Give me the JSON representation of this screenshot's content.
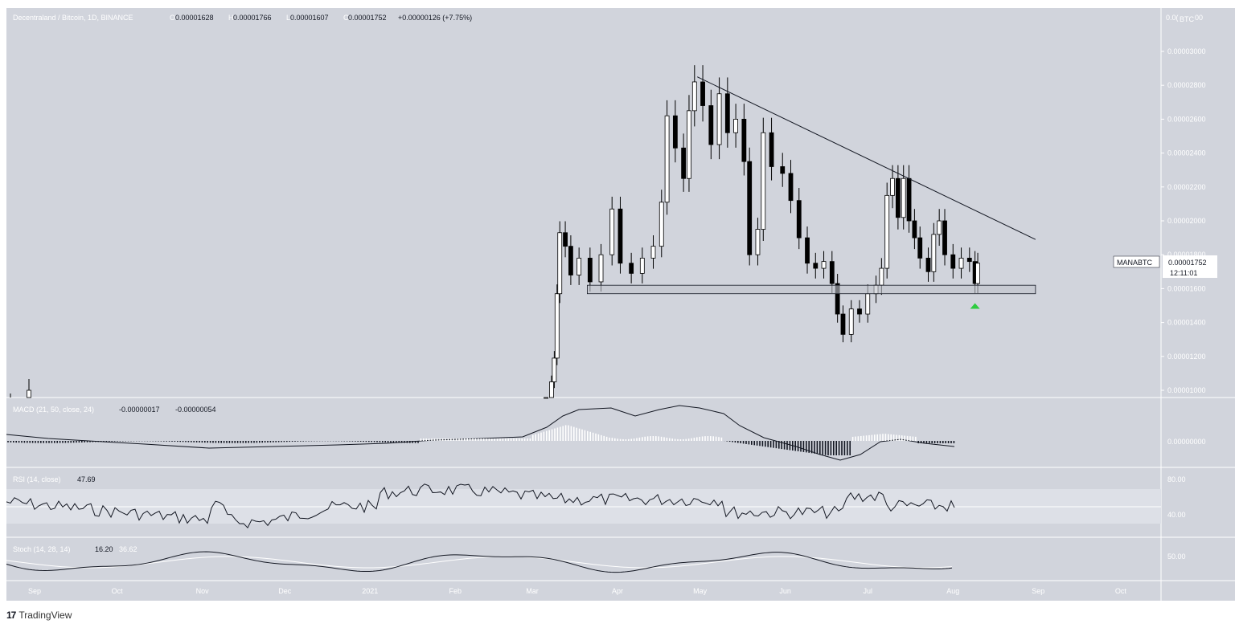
{
  "header": {
    "symbol_title": "Decentraland / Bitcoin, 1D, BINANCE",
    "open_label": "O",
    "open": "0.00001628",
    "high_label": "H",
    "high": "0.00001766",
    "low_label": "L",
    "low": "0.00001607",
    "close_label": "C",
    "close": "0.00001752",
    "change": "+0.00000126 (+7.75%)"
  },
  "price_axis": {
    "currency": "BTC",
    "top_label": "0.0(",
    "top_label_suffix": "00",
    "ticks": [
      "0.00003000",
      "0.00002800",
      "0.00002600",
      "0.00002400",
      "0.00002200",
      "0.00002000",
      "0.00001800",
      "0.00001600",
      "0.00001400",
      "0.00001200",
      "0.00001000"
    ],
    "tick_values": [
      3e-05,
      2.8e-05,
      2.6e-05,
      2.4e-05,
      2.2e-05,
      2e-05,
      1.8e-05,
      1.6e-05,
      1.4e-05,
      1.2e-05,
      1e-05
    ]
  },
  "last_price": {
    "ticker": "MANABTC",
    "price": "0.00001752",
    "countdown": "12:11:01"
  },
  "x_axis": {
    "labels": [
      "Sep",
      "Oct",
      "Nov",
      "Dec",
      "2021",
      "Feb",
      "Mar",
      "Apr",
      "May",
      "Jun",
      "Jul",
      "Aug",
      "Sep",
      "Oct"
    ]
  },
  "macd": {
    "label": "MACD (21, 50, close, 24)",
    "macd_value": "-0.00000017",
    "signal_value": "-0.00000054",
    "axis_label": "0.00000000"
  },
  "rsi": {
    "label": "RSI (14, close)",
    "value": "47.69",
    "axis_labels": [
      "80.00",
      "40.00"
    ]
  },
  "stoch": {
    "label": "Stoch (14, 28, 14)",
    "k_value": "16.20",
    "d_value": "36.62",
    "axis_label": "50.00"
  },
  "footer": {
    "brand": "TradingView",
    "logo": "17"
  },
  "colors": {
    "background": "#d1d4dc",
    "candle": "#000000",
    "support_zone": "#c0c3cb",
    "signal_arrow": "#2ecc40",
    "grid": "#c6c9d1"
  },
  "chart_data": {
    "type": "candlestick",
    "title": "Decentraland / Bitcoin, 1D, BINANCE",
    "xlabel": "",
    "ylabel": "",
    "ylim": [
      9.6e-06,
      3.21e-05
    ],
    "x_labels": [
      "Sep",
      "Oct",
      "Nov",
      "Dec",
      "2021",
      "Feb",
      "Mar",
      "Apr",
      "May",
      "Jun",
      "Jul",
      "Aug",
      "Sep",
      "Oct"
    ],
    "series": [
      {
        "points": [
          [
            "2021-03-06",
            9.1e-06
          ],
          [
            "2021-03-08",
            1.05e-05
          ],
          [
            "2021-03-09",
            1.19e-05
          ],
          [
            "2021-03-10",
            1.57e-05
          ],
          [
            "2021-03-11",
            1.93e-05
          ],
          [
            "2021-03-13",
            1.85e-05
          ],
          [
            "2021-03-15",
            1.68e-05
          ],
          [
            "2021-03-18",
            1.78e-05
          ],
          [
            "2021-03-22",
            1.64e-05
          ],
          [
            "2021-03-26",
            1.8e-05
          ],
          [
            "2021-03-30",
            2.07e-05
          ],
          [
            "2021-04-02",
            1.75e-05
          ],
          [
            "2021-04-06",
            1.69e-05
          ],
          [
            "2021-04-10",
            1.78e-05
          ],
          [
            "2021-04-14",
            1.85e-05
          ],
          [
            "2021-04-17",
            2.11e-05
          ],
          [
            "2021-04-19",
            2.62e-05
          ],
          [
            "2021-04-22",
            2.43e-05
          ],
          [
            "2021-04-25",
            2.25e-05
          ],
          [
            "2021-04-27",
            2.65e-05
          ],
          [
            "2021-04-29",
            2.82e-05
          ],
          [
            "2021-05-02",
            2.68e-05
          ],
          [
            "2021-05-05",
            2.45e-05
          ],
          [
            "2021-05-08",
            2.75e-05
          ],
          [
            "2021-05-11",
            2.52e-05
          ],
          [
            "2021-05-14",
            2.6e-05
          ],
          [
            "2021-05-17",
            2.35e-05
          ],
          [
            "2021-05-19",
            1.8e-05
          ],
          [
            "2021-05-22",
            1.95e-05
          ],
          [
            "2021-05-24",
            2.52e-05
          ],
          [
            "2021-05-27",
            2.32e-05
          ],
          [
            "2021-05-31",
            2.28e-05
          ],
          [
            "2021-06-03",
            2.12e-05
          ],
          [
            "2021-06-06",
            1.9e-05
          ],
          [
            "2021-06-09",
            1.75e-05
          ],
          [
            "2021-06-12",
            1.72e-05
          ],
          [
            "2021-06-15",
            1.76e-05
          ],
          [
            "2021-06-18",
            1.63e-05
          ],
          [
            "2021-06-20",
            1.45e-05
          ],
          [
            "2021-06-22",
            1.33e-05
          ],
          [
            "2021-06-25",
            1.48e-05
          ],
          [
            "2021-06-28",
            1.45e-05
          ],
          [
            "2021-07-01",
            1.57e-05
          ],
          [
            "2021-07-04",
            1.62e-05
          ],
          [
            "2021-07-06",
            1.72e-05
          ],
          [
            "2021-07-08",
            2.15e-05
          ],
          [
            "2021-07-10",
            2.25e-05
          ],
          [
            "2021-07-12",
            2.02e-05
          ],
          [
            "2021-07-14",
            2.25e-05
          ],
          [
            "2021-07-16",
            2e-05
          ],
          [
            "2021-07-18",
            1.9e-05
          ],
          [
            "2021-07-20",
            1.78e-05
          ],
          [
            "2021-07-23",
            1.7e-05
          ],
          [
            "2021-07-25",
            1.92e-05
          ],
          [
            "2021-07-27",
            2e-05
          ],
          [
            "2021-07-29",
            1.8e-05
          ],
          [
            "2021-08-01",
            1.72e-05
          ],
          [
            "2021-08-04",
            1.78e-05
          ],
          [
            "2021-08-07",
            1.76e-05
          ],
          [
            "2021-08-09",
            1.63e-05
          ],
          [
            "2021-08-10",
            1.75e-05
          ]
        ]
      }
    ],
    "annotations": {
      "trendline": [
        [
          "2021-04-30",
          2.85e-05
        ],
        [
          "2021-08-31",
          1.89e-05
        ]
      ],
      "support_zone": {
        "from": "2021-03-21",
        "to": "2021-08-31",
        "low": 1.57e-05,
        "high": 1.62e-05
      },
      "signal_arrow": [
        "2021-08-09",
        1.5e-05
      ]
    },
    "indicators": {
      "macd": {
        "macd": -1.7e-07,
        "signal": -5.4e-07,
        "zero_line": 0
      },
      "rsi": {
        "value": 47.69,
        "levels": [
          70,
          50,
          30
        ],
        "axis_ticks": [
          80,
          40
        ]
      },
      "stoch": {
        "k": 16.2,
        "d": 36.62,
        "axis_ticks": [
          50
        ]
      }
    }
  }
}
